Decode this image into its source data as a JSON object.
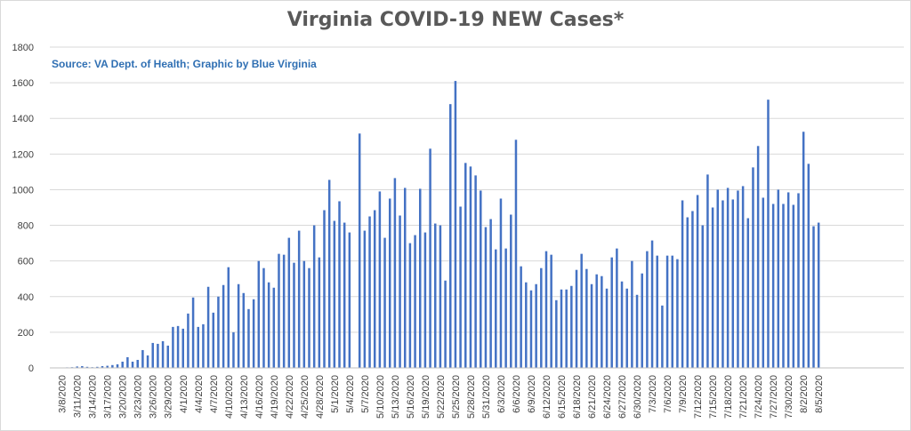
{
  "chart_data": {
    "type": "bar",
    "title": "Virginia COVID-19 NEW Cases*",
    "subtitle": "Source: VA Dept. of Health; Graphic by Blue Virginia",
    "xlabel": "",
    "ylabel": "",
    "ylim": [
      0,
      1800
    ],
    "y_ticks": [
      0,
      200,
      400,
      600,
      800,
      1000,
      1200,
      1400,
      1600,
      1800
    ],
    "x_tick_labels": [
      "3/8/2020",
      "3/11/2020",
      "3/14/2020",
      "3/17/2020",
      "3/20/2020",
      "3/23/2020",
      "3/26/2020",
      "3/29/2020",
      "4/1/2020",
      "4/4/2020",
      "4/7/2020",
      "4/10/2020",
      "4/13/2020",
      "4/16/2020",
      "4/19/2020",
      "4/22/2020",
      "4/25/2020",
      "4/28/2020",
      "5/1/2020",
      "5/4/2020",
      "5/7/2020",
      "5/10/2020",
      "5/13/2020",
      "5/16/2020",
      "5/19/2020",
      "5/22/2020",
      "5/25/2020",
      "5/28/2020",
      "5/31/2020",
      "6/3/2020",
      "6/6/2020",
      "6/9/2020",
      "6/12/2020",
      "6/15/2020",
      "6/18/2020",
      "6/21/2020",
      "6/24/2020",
      "6/27/2020",
      "6/30/2020",
      "7/3/2020",
      "7/6/2020",
      "7/9/2020",
      "7/12/2020",
      "7/15/2020",
      "7/18/2020",
      "7/21/2020",
      "7/24/2020",
      "7/27/2020",
      "7/30/2020",
      "8/2/2020",
      "8/5/2020"
    ],
    "grid": true,
    "legend": "none",
    "series": [
      {
        "color": "#4472c4",
        "start_date": "3/7/2020",
        "values": [
          2,
          2,
          3,
          4,
          8,
          10,
          6,
          4,
          6,
          10,
          12,
          16,
          20,
          35,
          60,
          35,
          45,
          100,
          70,
          140,
          135,
          150,
          125,
          230,
          235,
          220,
          305,
          395,
          230,
          245,
          455,
          310,
          400,
          465,
          565,
          200,
          470,
          420,
          330,
          385,
          600,
          560,
          480,
          450,
          640,
          635,
          730,
          590,
          770,
          600,
          560,
          800,
          620,
          885,
          1055,
          825,
          935,
          815,
          760,
          0,
          1315,
          770,
          850,
          885,
          990,
          730,
          950,
          1065,
          855,
          1010,
          700,
          745,
          1005,
          760,
          1230,
          810,
          800,
          490,
          1480,
          1610,
          905,
          1150,
          1130,
          1080,
          995,
          790,
          835,
          665,
          950,
          670,
          860,
          1280,
          570,
          480,
          435,
          470,
          560,
          655,
          635,
          380,
          440,
          440,
          460,
          550,
          640,
          555,
          470,
          525,
          515,
          445,
          620,
          670,
          485,
          445,
          600,
          410,
          530,
          655,
          715,
          630,
          350,
          630,
          630,
          610,
          940,
          845,
          880,
          970,
          800,
          1085,
          900,
          1000,
          940,
          1010,
          945,
          995,
          1020,
          840,
          1125,
          1245,
          955,
          1505,
          920,
          1000,
          920,
          985,
          915,
          980,
          1325,
          1145,
          795,
          815
        ]
      }
    ]
  }
}
